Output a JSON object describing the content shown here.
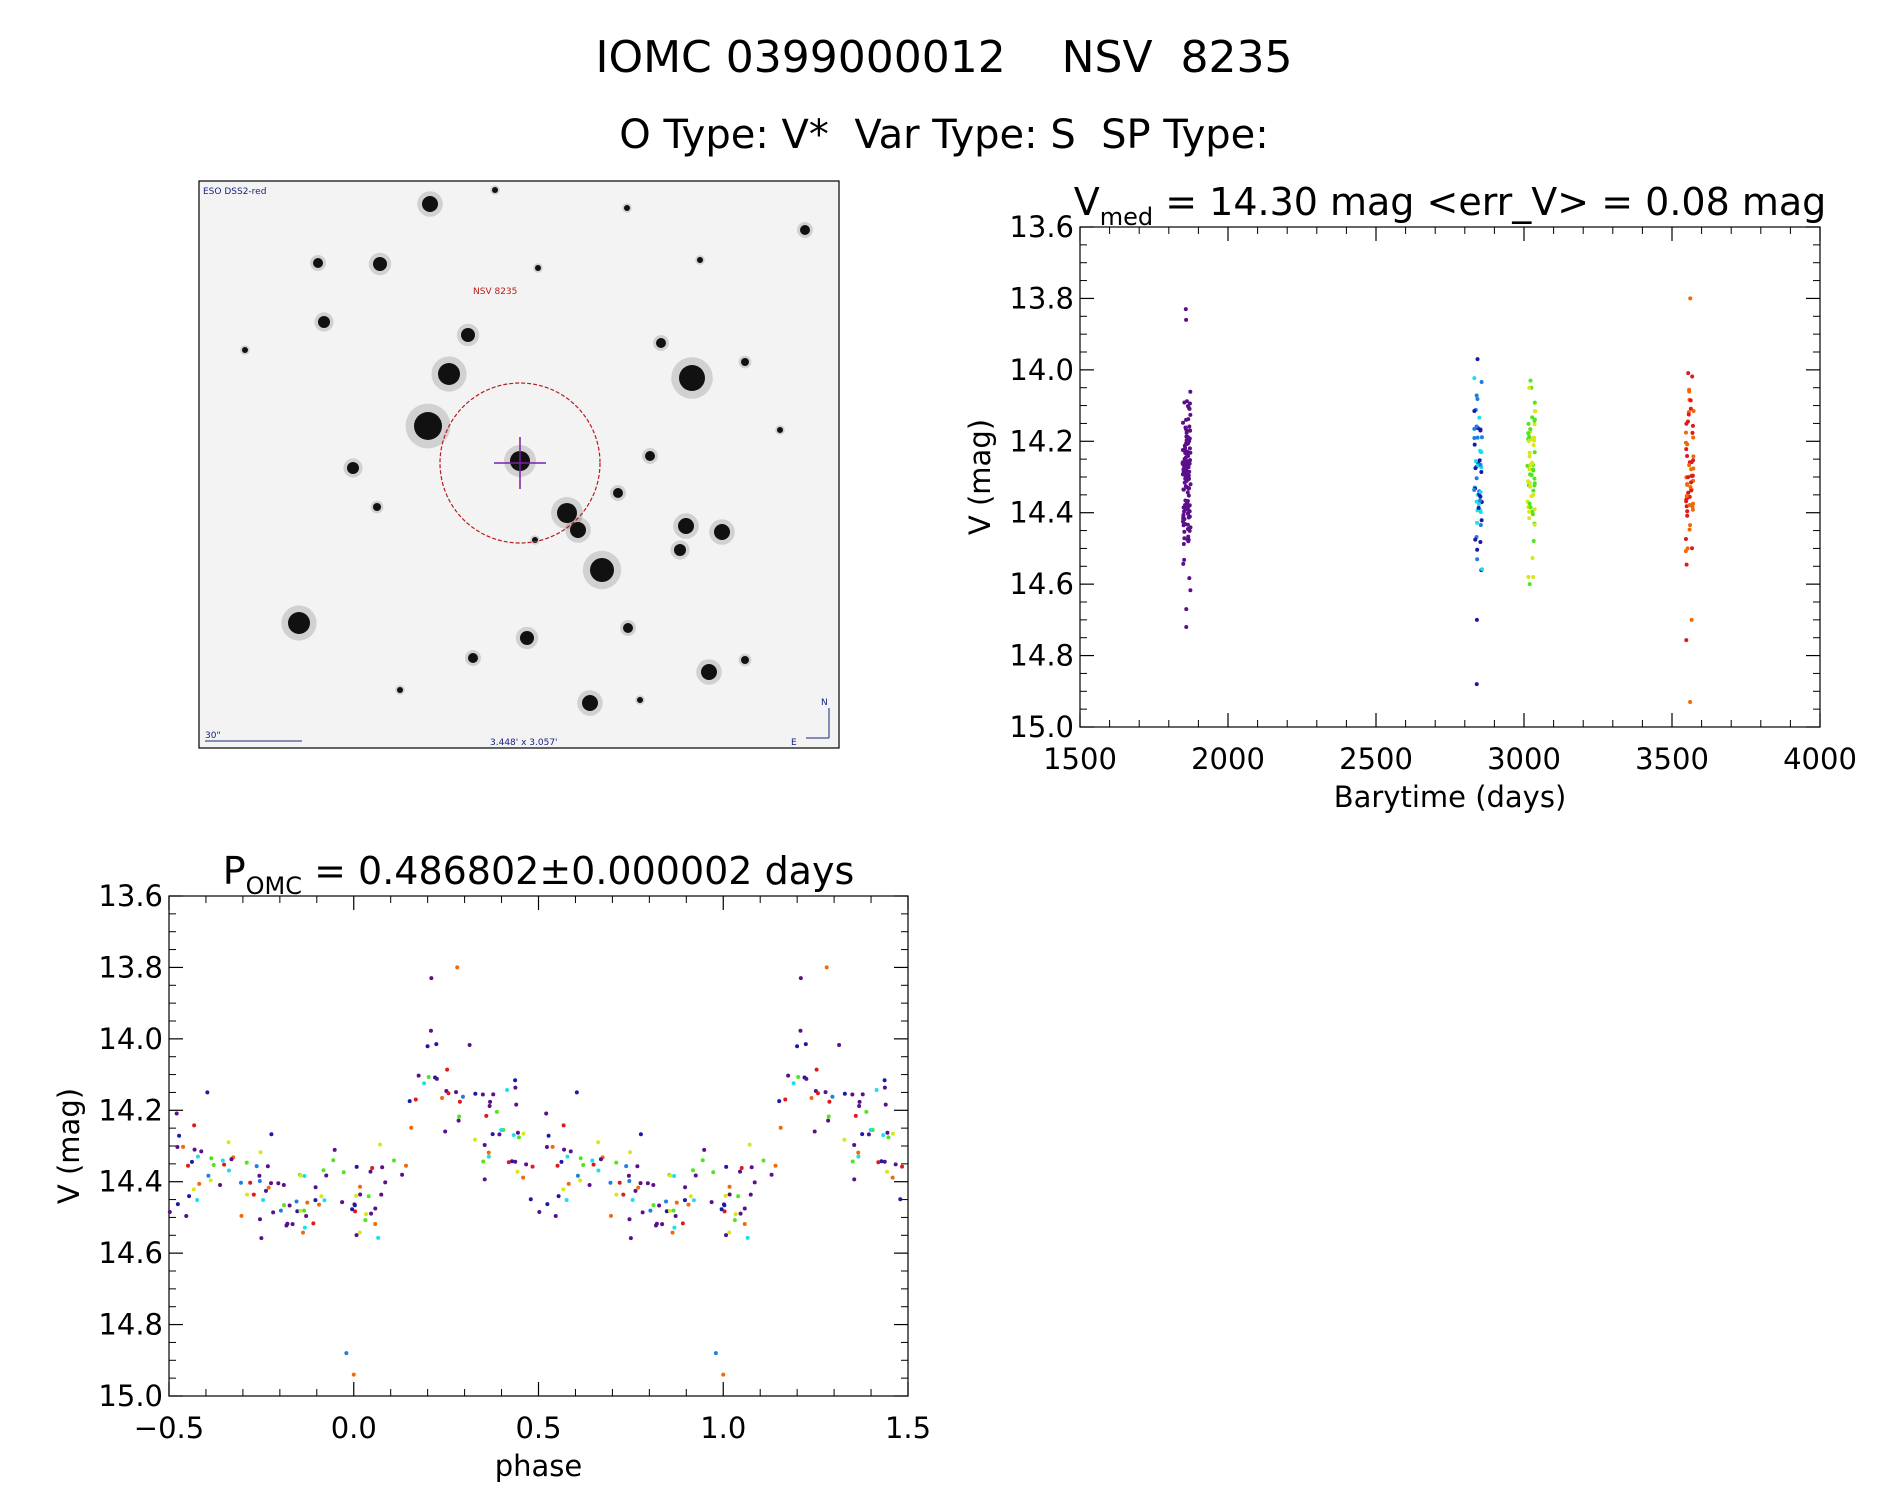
{
  "header": {
    "title_line1": "IOMC 0399000012    NSV  8235",
    "title_line2": "O Type: V*  Var Type: S  SP Type:"
  },
  "image_panel": {
    "survey_label": "ESO DSS2-red",
    "target_label": "NSV 8235",
    "scale_label": "30\"",
    "fov_label": "3.448' x 3.057'",
    "compass_n": "N",
    "compass_e": "E"
  },
  "colors": {
    "purple": "#5b0f8a",
    "indigo": "#1a1aa8",
    "blue": "#1e7fe0",
    "cyan": "#19e0ee",
    "green": "#4ee81a",
    "yellow": "#d9e61a",
    "orange": "#f06a0a",
    "red": "#e01a1a",
    "circle": "#b71c1c",
    "cross": "#7b1fa2"
  },
  "chart_data": [
    {
      "type": "scatter",
      "title_main": "V",
      "title_sub": "med",
      "title_rest": " = 14.30 mag <err_V> = 0.08 mag",
      "xlabel": "Barytime (days)",
      "ylabel": "V (mag)",
      "xlim": [
        1500,
        4000
      ],
      "ylim": [
        15.0,
        13.6
      ],
      "xticks": [
        "1500",
        "2000",
        "2500",
        "3000",
        "3500",
        "4000"
      ],
      "yticks": [
        "13.6",
        "13.8",
        "14.0",
        "14.2",
        "14.4",
        "14.6",
        "14.8",
        "15.0"
      ],
      "groups": [
        {
          "x": 1860,
          "ymin": 13.83,
          "ymax": 14.72,
          "n": 130,
          "colors": [
            "#5b0f8a"
          ],
          "outliers": [
            13.83,
            13.86,
            14.72,
            14.67
          ]
        },
        {
          "x": 2845,
          "ymin": 13.97,
          "ymax": 14.88,
          "n": 55,
          "colors": [
            "#1a1aa8",
            "#1e7fe0",
            "#19e0ee"
          ],
          "outliers": [
            14.88,
            14.7,
            13.97
          ]
        },
        {
          "x": 3025,
          "ymin": 14.03,
          "ymax": 14.6,
          "n": 60,
          "colors": [
            "#4ee81a",
            "#d9e61a"
          ],
          "outliers": [
            14.6,
            14.03
          ]
        },
        {
          "x": 3560,
          "ymin": 13.8,
          "ymax": 14.93,
          "n": 60,
          "colors": [
            "#f06a0a",
            "#e01a1a"
          ],
          "outliers": [
            13.8,
            14.93,
            14.7
          ]
        }
      ]
    },
    {
      "type": "scatter",
      "title_main": "P",
      "title_sub": "OMC",
      "title_rest": " = 0.486802±0.000002 days",
      "xlabel": "phase",
      "ylabel": "V (mag)",
      "xlim": [
        -0.5,
        1.5
      ],
      "ylim": [
        15.0,
        13.6
      ],
      "xticks": [
        "−0.5",
        "0.0",
        "0.5",
        "1.0",
        "1.5"
      ],
      "yticks": [
        "13.6",
        "13.8",
        "14.0",
        "14.2",
        "14.4",
        "14.6",
        "14.8",
        "15.0"
      ],
      "light_curve": {
        "phase": [
          0.0,
          0.1,
          0.15,
          0.2,
          0.25,
          0.3,
          0.4,
          0.5,
          0.6,
          0.7,
          0.8,
          0.9,
          1.0
        ],
        "mag": [
          14.48,
          14.4,
          14.25,
          14.08,
          14.12,
          14.17,
          14.25,
          14.32,
          14.38,
          14.42,
          14.44,
          14.46,
          14.48
        ]
      }
    }
  ]
}
